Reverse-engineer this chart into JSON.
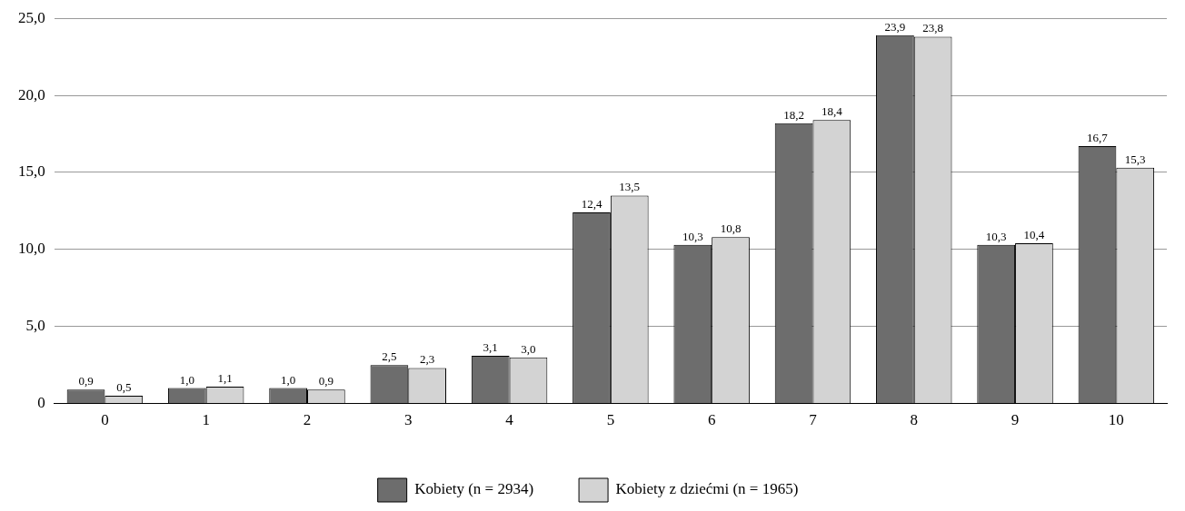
{
  "chart_data": {
    "type": "bar",
    "categories": [
      "0",
      "1",
      "2",
      "3",
      "4",
      "5",
      "6",
      "7",
      "8",
      "9",
      "10"
    ],
    "series": [
      {
        "name": "Kobiety (n = 2934)",
        "color": "#6d6d6d",
        "values": [
          0.9,
          1.0,
          1.0,
          2.5,
          3.1,
          12.4,
          10.3,
          18.2,
          23.9,
          10.3,
          16.7
        ],
        "value_labels": [
          "0,9",
          "1,0",
          "1,0",
          "2,5",
          "3,1",
          "12,4",
          "10,3",
          "18,2",
          "23,9",
          "10,3",
          "16,7"
        ]
      },
      {
        "name": "Kobiety z dziećmi (n = 1965)",
        "color": "#d3d3d3",
        "values": [
          0.5,
          1.1,
          0.9,
          2.3,
          3.0,
          13.5,
          10.8,
          18.4,
          23.8,
          10.4,
          15.3
        ],
        "value_labels": [
          "0,5",
          "1,1",
          "0,9",
          "2,3",
          "3,0",
          "13,5",
          "10,8",
          "18,4",
          "23,8",
          "10,4",
          "15,3"
        ]
      }
    ],
    "ylim": [
      0,
      25
    ],
    "yticks": [
      0,
      {
        "value": 5,
        "label": "5,0"
      },
      {
        "value": 10,
        "label": "10,0"
      },
      {
        "value": 15,
        "label": "15,0"
      },
      {
        "value": 20,
        "label": "20,0"
      },
      {
        "value": 25,
        "label": "25,0"
      }
    ],
    "grid": "y",
    "legend": "bottom"
  }
}
